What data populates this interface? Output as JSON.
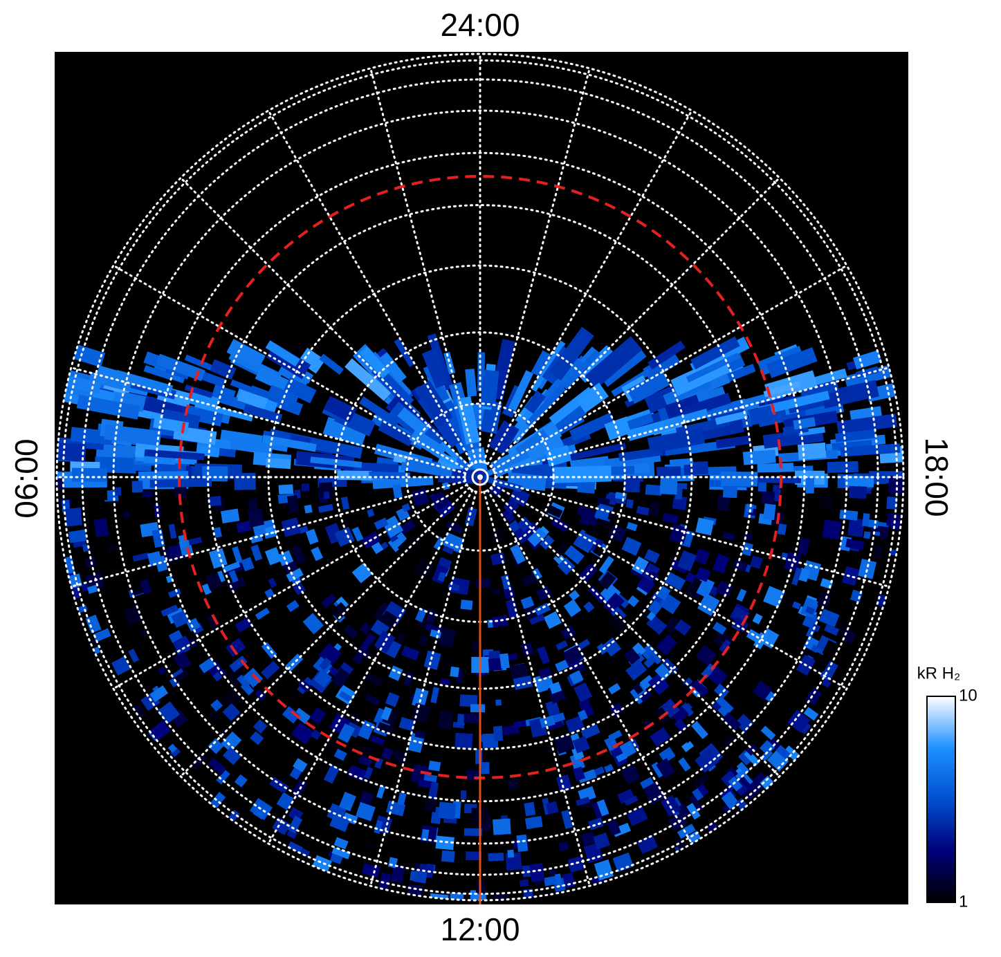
{
  "chart_data": {
    "type": "polar-map",
    "time_labels": {
      "top": "24:00",
      "right": "18:00",
      "bottom": "12:00",
      "left": "06:00"
    },
    "colorbar": {
      "label": "kR H₂",
      "scale": "log",
      "lim": [
        1,
        10
      ],
      "ticks": [
        1,
        10
      ],
      "colors": [
        "#000000",
        "#00007a",
        "#0050d0",
        "#1e90ff",
        "#ffffff"
      ]
    }
  }
}
